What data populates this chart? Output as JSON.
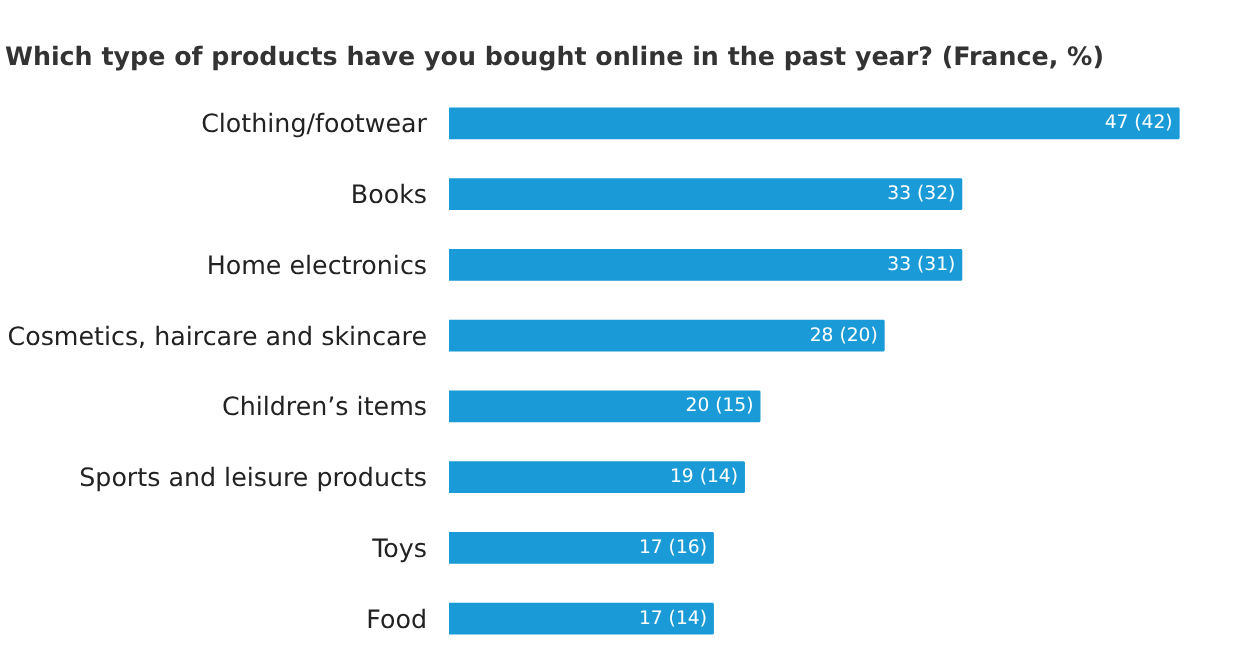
{
  "chart_data": {
    "type": "bar",
    "orientation": "horizontal",
    "title": "Which type of products have you bought online in the past year? (France, %)",
    "categories": [
      "Clothing/footwear",
      "Books",
      "Home electronics",
      "Cosmetics, haircare and skincare",
      "Children’s items",
      "Sports and leisure products",
      "Toys",
      "Food"
    ],
    "values": [
      47,
      33,
      33,
      28,
      20,
      19,
      17,
      17
    ],
    "value_labels": [
      "47 (42)",
      "33 (32)",
      "33 (31)",
      "28 (20)",
      "20 (15)",
      "19 (14)",
      "17 (16)",
      "17 (14)"
    ],
    "color": "#1a9bd7",
    "tick_labels": "y",
    "grid": false
  }
}
